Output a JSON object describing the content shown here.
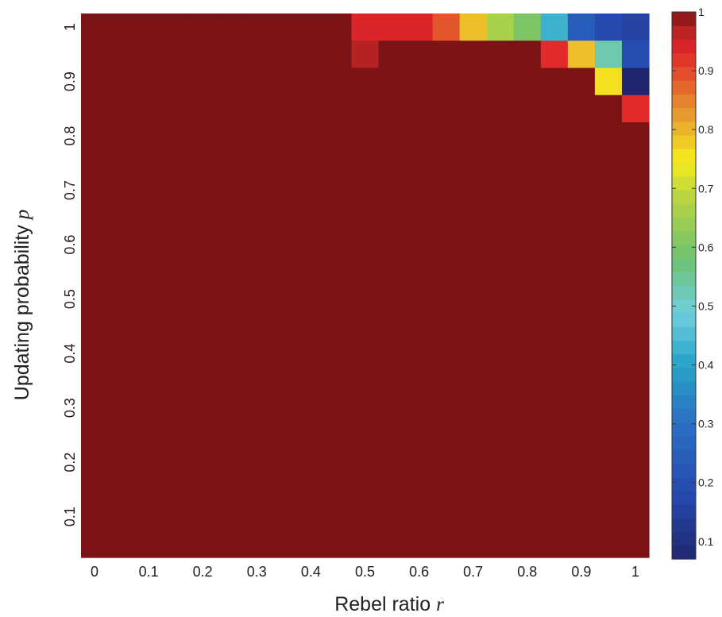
{
  "chart_data": {
    "type": "heatmap",
    "title": "",
    "xlabel": "Rebel ratio",
    "xlabel_var": "r",
    "ylabel": "Updating probability",
    "ylabel_var": "p",
    "x": [
      0,
      0.05,
      0.1,
      0.15,
      0.2,
      0.25,
      0.3,
      0.35,
      0.4,
      0.45,
      0.5,
      0.55,
      0.6,
      0.65,
      0.7,
      0.75,
      0.8,
      0.85,
      0.9,
      0.95,
      1
    ],
    "y": [
      1,
      0.95,
      0.9,
      0.85,
      0.8,
      0.75,
      0.7,
      0.65,
      0.6,
      0.55,
      0.5,
      0.45,
      0.4,
      0.35,
      0.3,
      0.25,
      0.2,
      0.15,
      0.1,
      0.05
    ],
    "x_ticks": [
      "0",
      "0.1",
      "0.2",
      "0.3",
      "0.4",
      "0.5",
      "0.6",
      "0.7",
      "0.8",
      "0.9",
      "1"
    ],
    "y_ticks": [
      "0.1",
      "0.2",
      "0.3",
      "0.4",
      "0.5",
      "0.6",
      "0.7",
      "0.8",
      "0.9",
      "1"
    ],
    "default_value": 1.0,
    "cells": [
      {
        "row": 0,
        "col": 10,
        "value": 0.94
      },
      {
        "row": 0,
        "col": 11,
        "value": 0.94
      },
      {
        "row": 0,
        "col": 12,
        "value": 0.94
      },
      {
        "row": 0,
        "col": 13,
        "value": 0.89
      },
      {
        "row": 0,
        "col": 14,
        "value": 0.79
      },
      {
        "row": 0,
        "col": 15,
        "value": 0.66
      },
      {
        "row": 0,
        "col": 16,
        "value": 0.6
      },
      {
        "row": 0,
        "col": 17,
        "value": 0.43
      },
      {
        "row": 0,
        "col": 18,
        "value": 0.24
      },
      {
        "row": 0,
        "col": 19,
        "value": 0.18
      },
      {
        "row": 0,
        "col": 20,
        "value": 0.16
      },
      {
        "row": 1,
        "col": 10,
        "value": 0.97
      },
      {
        "row": 1,
        "col": 17,
        "value": 0.93
      },
      {
        "row": 1,
        "col": 18,
        "value": 0.79
      },
      {
        "row": 1,
        "col": 19,
        "value": 0.53
      },
      {
        "row": 1,
        "col": 20,
        "value": 0.19
      },
      {
        "row": 2,
        "col": 20,
        "value": 0.07
      },
      {
        "row": 2,
        "col": 19,
        "value": 0.76
      },
      {
        "row": 3,
        "col": 20,
        "value": 0.93
      }
    ],
    "colorbar": {
      "min": 0.07,
      "max": 1,
      "ticks": [
        "0.1",
        "0.2",
        "0.3",
        "0.4",
        "0.5",
        "0.6",
        "0.7",
        "0.8",
        "0.9",
        "1"
      ],
      "tick_values": [
        0.1,
        0.2,
        0.3,
        0.4,
        0.5,
        0.6,
        0.7,
        0.8,
        0.9,
        1
      ],
      "colormap": "jet-like (dark blue → cyan → yellow → red → dark red)"
    },
    "grid": false,
    "legend": "colorbar right"
  }
}
